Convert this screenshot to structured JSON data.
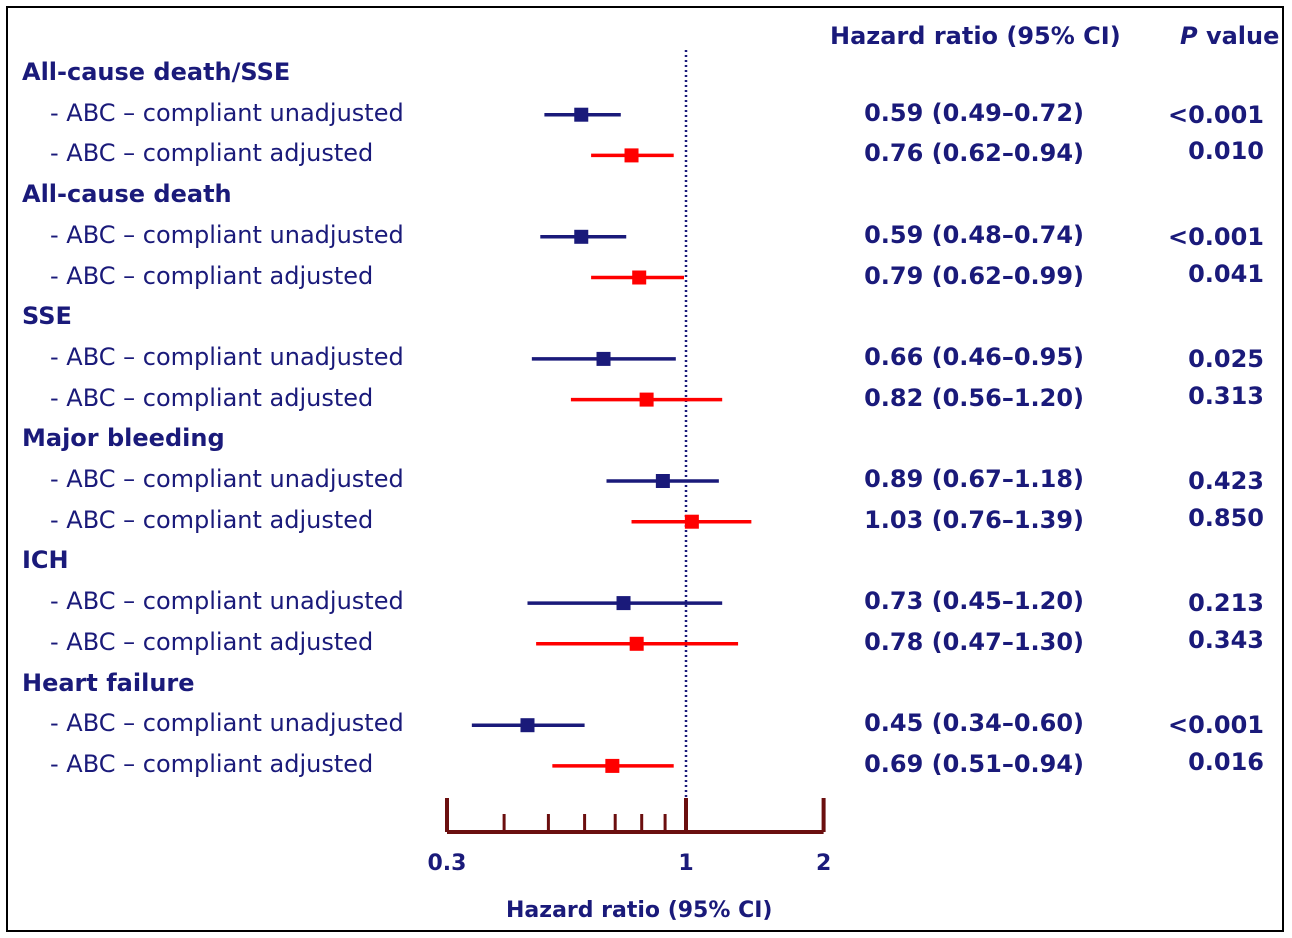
{
  "header": {
    "hr_label": "Hazard ratio (95% CI)",
    "p_prefix": "P",
    "p_suffix": " value"
  },
  "colors": {
    "text": "#1a1a7a",
    "unadjusted": "#1a1a7a",
    "adjusted": "#ff0000",
    "axis": "#6b0f0f",
    "refline": "#1a1a7a"
  },
  "chart_data": {
    "type": "forest",
    "xscale": "log",
    "xlim": [
      0.3,
      2
    ],
    "reference_line": 1,
    "xticks_labeled": [
      {
        "value": 0.3,
        "label": "0.3"
      },
      {
        "value": 1,
        "label": "1"
      },
      {
        "value": 2,
        "label": "2"
      }
    ],
    "xticks_minor": [
      0.4,
      0.5,
      0.6,
      0.7,
      0.8,
      0.9
    ],
    "xlabel": "Hazard ratio (95% CI)",
    "groups": [
      {
        "name": "All-cause death/SSE",
        "rows": [
          {
            "label": "- ABC – compliant unadjusted",
            "type": "unadjusted",
            "hr": 0.59,
            "lo": 0.49,
            "hi": 0.72,
            "hr_text": "0.59 (0.49–0.72)",
            "p": "<0.001"
          },
          {
            "label": "- ABC – compliant adjusted",
            "type": "adjusted",
            "hr": 0.76,
            "lo": 0.62,
            "hi": 0.94,
            "hr_text": "0.76 (0.62–0.94)",
            "p": "0.010"
          }
        ]
      },
      {
        "name": "All-cause death",
        "rows": [
          {
            "label": "- ABC – compliant unadjusted",
            "type": "unadjusted",
            "hr": 0.59,
            "lo": 0.48,
            "hi": 0.74,
            "hr_text": "0.59 (0.48–0.74)",
            "p": "<0.001"
          },
          {
            "label": "- ABC – compliant adjusted",
            "type": "adjusted",
            "hr": 0.79,
            "lo": 0.62,
            "hi": 0.99,
            "hr_text": "0.79 (0.62–0.99)",
            "p": "0.041"
          }
        ]
      },
      {
        "name": "SSE",
        "rows": [
          {
            "label": "- ABC – compliant unadjusted",
            "type": "unadjusted",
            "hr": 0.66,
            "lo": 0.46,
            "hi": 0.95,
            "hr_text": "0.66 (0.46–0.95)",
            "p": "0.025"
          },
          {
            "label": "- ABC – compliant adjusted",
            "type": "adjusted",
            "hr": 0.82,
            "lo": 0.56,
            "hi": 1.2,
            "hr_text": "0.82 (0.56–1.20)",
            "p": "0.313"
          }
        ]
      },
      {
        "name": "Major bleeding",
        "rows": [
          {
            "label": "- ABC – compliant unadjusted",
            "type": "unadjusted",
            "hr": 0.89,
            "lo": 0.67,
            "hi": 1.18,
            "hr_text": "0.89 (0.67–1.18)",
            "p": "0.423"
          },
          {
            "label": "- ABC – compliant adjusted",
            "type": "adjusted",
            "hr": 1.03,
            "lo": 0.76,
            "hi": 1.39,
            "hr_text": "1.03 (0.76–1.39)",
            "p": "0.850"
          }
        ]
      },
      {
        "name": "ICH",
        "rows": [
          {
            "label": "- ABC – compliant unadjusted",
            "type": "unadjusted",
            "hr": 0.73,
            "lo": 0.45,
            "hi": 1.2,
            "hr_text": "0.73 (0.45–1.20)",
            "p": "0.213"
          },
          {
            "label": "- ABC – compliant adjusted",
            "type": "adjusted",
            "hr": 0.78,
            "lo": 0.47,
            "hi": 1.3,
            "hr_text": "0.78 (0.47–1.30)",
            "p": "0.343"
          }
        ]
      },
      {
        "name": "Heart failure",
        "rows": [
          {
            "label": "- ABC – compliant unadjusted",
            "type": "unadjusted",
            "hr": 0.45,
            "lo": 0.34,
            "hi": 0.6,
            "hr_text": "0.45 (0.34–0.60)",
            "p": "<0.001"
          },
          {
            "label": "- ABC – compliant adjusted",
            "type": "adjusted",
            "hr": 0.69,
            "lo": 0.51,
            "hi": 0.94,
            "hr_text": "0.69 (0.51–0.94)",
            "p": "0.016"
          }
        ]
      }
    ]
  }
}
